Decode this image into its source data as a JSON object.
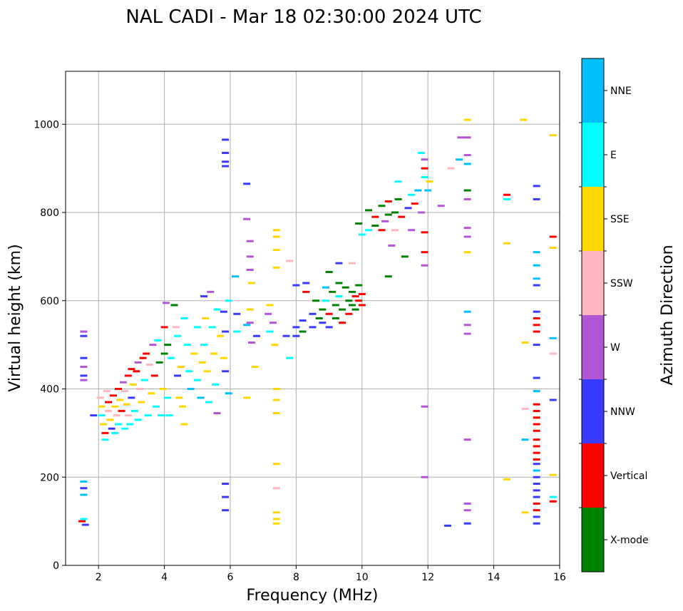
{
  "chart_data": {
    "type": "scatter",
    "title": "NAL CADI - Mar 18 02:30:00 2024 UTC",
    "xlabel": "Frequency (MHz)",
    "ylabel": "Virtual height (km)",
    "xlim": [
      1,
      16
    ],
    "ylim": [
      0,
      1120
    ],
    "xticks": [
      2,
      4,
      6,
      8,
      10,
      12,
      14,
      16
    ],
    "yticks": [
      0,
      200,
      400,
      600,
      800,
      1000
    ],
    "grid": true,
    "colorbar": {
      "label": "Azimuth Direction",
      "categories": [
        {
          "name": "X-mode",
          "color": "#008000"
        },
        {
          "name": "Vertical",
          "color": "#ff0000"
        },
        {
          "name": "NNW",
          "color": "#3a3aff"
        },
        {
          "name": "W",
          "color": "#b455d6"
        },
        {
          "name": "SSW",
          "color": "#ffb6c1"
        },
        {
          "name": "SSE",
          "color": "#ffd700"
        },
        {
          "name": "E",
          "color": "#00ffff"
        },
        {
          "name": "NNE",
          "color": "#00bfff"
        }
      ]
    },
    "points": [
      [
        1.55,
        530,
        "W"
      ],
      [
        1.55,
        520,
        "NNW"
      ],
      [
        1.55,
        470,
        "NNW"
      ],
      [
        1.55,
        450,
        "W"
      ],
      [
        1.55,
        430,
        "NNW"
      ],
      [
        1.55,
        420,
        "W"
      ],
      [
        1.55,
        190,
        "NNE"
      ],
      [
        1.55,
        175,
        "NNW"
      ],
      [
        1.55,
        160,
        "NNE"
      ],
      [
        1.55,
        105,
        "E"
      ],
      [
        1.5,
        100,
        "Vertical"
      ],
      [
        1.6,
        92,
        "NNW"
      ],
      [
        1.85,
        340,
        "NNW"
      ],
      [
        2.05,
        380,
        "SSW"
      ],
      [
        2.1,
        360,
        "SSE"
      ],
      [
        2.1,
        340,
        "E"
      ],
      [
        2.15,
        320,
        "SSE"
      ],
      [
        2.2,
        300,
        "Vertical"
      ],
      [
        2.2,
        285,
        "E"
      ],
      [
        2.25,
        395,
        "SSW"
      ],
      [
        2.3,
        370,
        "Vertical"
      ],
      [
        2.3,
        350,
        "SSW"
      ],
      [
        2.35,
        330,
        "SSE"
      ],
      [
        2.4,
        310,
        "NNW"
      ],
      [
        2.45,
        385,
        "Vertical"
      ],
      [
        2.5,
        360,
        "SSE"
      ],
      [
        2.5,
        300,
        "E"
      ],
      [
        2.55,
        340,
        "SSW"
      ],
      [
        2.6,
        400,
        "Vertical"
      ],
      [
        2.6,
        320,
        "E"
      ],
      [
        2.65,
        375,
        "SSE"
      ],
      [
        2.7,
        350,
        "Vertical"
      ],
      [
        2.75,
        415,
        "W"
      ],
      [
        2.8,
        395,
        "SSW"
      ],
      [
        2.8,
        310,
        "E"
      ],
      [
        2.85,
        365,
        "SSE"
      ],
      [
        2.9,
        430,
        "Vertical"
      ],
      [
        2.9,
        340,
        "SSW"
      ],
      [
        2.95,
        320,
        "E"
      ],
      [
        3.0,
        445,
        "Vertical"
      ],
      [
        3.0,
        380,
        "NNW"
      ],
      [
        3.05,
        410,
        "SSE"
      ],
      [
        3.1,
        350,
        "E"
      ],
      [
        3.15,
        440,
        "Vertical"
      ],
      [
        3.2,
        460,
        "W"
      ],
      [
        3.2,
        330,
        "E"
      ],
      [
        3.25,
        400,
        "SSW"
      ],
      [
        3.3,
        370,
        "SSE"
      ],
      [
        3.35,
        470,
        "Vertical"
      ],
      [
        3.4,
        420,
        "E"
      ],
      [
        3.45,
        480,
        "Vertical"
      ],
      [
        3.5,
        340,
        "E"
      ],
      [
        3.55,
        455,
        "SSW"
      ],
      [
        3.6,
        390,
        "SSE"
      ],
      [
        3.65,
        500,
        "W"
      ],
      [
        3.7,
        430,
        "Vertical"
      ],
      [
        3.75,
        360,
        "E"
      ],
      [
        3.8,
        510,
        "E"
      ],
      [
        3.85,
        460,
        "X-mode"
      ],
      [
        3.9,
        340,
        "E"
      ],
      [
        3.95,
        400,
        "SSE"
      ],
      [
        4.0,
        480,
        "X-mode"
      ],
      [
        4.0,
        540,
        "Vertical"
      ],
      [
        4.05,
        595,
        "W"
      ],
      [
        4.1,
        500,
        "X-mode"
      ],
      [
        4.1,
        380,
        "E"
      ],
      [
        4.15,
        340,
        "E"
      ],
      [
        4.2,
        470,
        "E"
      ],
      [
        4.3,
        590,
        "X-mode"
      ],
      [
        4.35,
        540,
        "SSW"
      ],
      [
        4.4,
        520,
        "E"
      ],
      [
        4.4,
        430,
        "NNW"
      ],
      [
        4.45,
        380,
        "SSE"
      ],
      [
        4.5,
        450,
        "SSE"
      ],
      [
        4.55,
        360,
        "SSE"
      ],
      [
        4.6,
        560,
        "E"
      ],
      [
        4.6,
        320,
        "SSE"
      ],
      [
        4.7,
        500,
        "E"
      ],
      [
        4.75,
        440,
        "E"
      ],
      [
        4.8,
        400,
        "NNE"
      ],
      [
        4.9,
        480,
        "SSE"
      ],
      [
        5.0,
        540,
        "E"
      ],
      [
        5.0,
        420,
        "E"
      ],
      [
        5.1,
        380,
        "NNE"
      ],
      [
        5.15,
        460,
        "SSE"
      ],
      [
        5.2,
        610,
        "NNW"
      ],
      [
        5.2,
        500,
        "E"
      ],
      [
        5.25,
        560,
        "SSE"
      ],
      [
        5.3,
        440,
        "SSE"
      ],
      [
        5.35,
        370,
        "E"
      ],
      [
        5.4,
        620,
        "W"
      ],
      [
        5.45,
        540,
        "E"
      ],
      [
        5.5,
        480,
        "SSE"
      ],
      [
        5.55,
        410,
        "E"
      ],
      [
        5.6,
        580,
        "E"
      ],
      [
        5.6,
        345,
        "W"
      ],
      [
        5.7,
        520,
        "SSE"
      ],
      [
        5.8,
        470,
        "SSE"
      ],
      [
        5.8,
        575,
        "NNW"
      ],
      [
        5.85,
        965,
        "NNW"
      ],
      [
        5.85,
        935,
        "NNW"
      ],
      [
        5.85,
        915,
        "NNW"
      ],
      [
        5.85,
        905,
        "NNW"
      ],
      [
        5.85,
        530,
        "NNW"
      ],
      [
        5.85,
        440,
        "NNW"
      ],
      [
        5.85,
        185,
        "NNW"
      ],
      [
        5.85,
        155,
        "NNW"
      ],
      [
        5.85,
        125,
        "NNW"
      ],
      [
        5.95,
        600,
        "E"
      ],
      [
        5.95,
        390,
        "NNE"
      ],
      [
        6.15,
        655,
        "NNE"
      ],
      [
        6.2,
        570,
        "NNW"
      ],
      [
        6.2,
        530,
        "E"
      ],
      [
        6.5,
        865,
        "NNW"
      ],
      [
        6.5,
        785,
        "W"
      ],
      [
        6.5,
        380,
        "SSE"
      ],
      [
        6.5,
        545,
        "NNE"
      ],
      [
        6.6,
        735,
        "W"
      ],
      [
        6.6,
        700,
        "W"
      ],
      [
        6.6,
        670,
        "W"
      ],
      [
        6.65,
        640,
        "SSE"
      ],
      [
        6.6,
        580,
        "SSE"
      ],
      [
        6.6,
        550,
        "W"
      ],
      [
        6.65,
        505,
        "W"
      ],
      [
        6.75,
        450,
        "SSE"
      ],
      [
        6.8,
        520,
        "NNW"
      ],
      [
        7.2,
        590,
        "SSE"
      ],
      [
        7.15,
        570,
        "W"
      ],
      [
        7.2,
        530,
        "E"
      ],
      [
        7.3,
        550,
        "W"
      ],
      [
        7.35,
        500,
        "SSE"
      ],
      [
        7.4,
        760,
        "SSE"
      ],
      [
        7.4,
        745,
        "SSE"
      ],
      [
        7.4,
        715,
        "SSE"
      ],
      [
        7.4,
        675,
        "SSE"
      ],
      [
        7.4,
        400,
        "SSE"
      ],
      [
        7.4,
        375,
        "SSE"
      ],
      [
        7.4,
        345,
        "SSE"
      ],
      [
        7.4,
        230,
        "SSE"
      ],
      [
        7.4,
        175,
        "SSW"
      ],
      [
        7.4,
        120,
        "SSE"
      ],
      [
        7.4,
        105,
        "SSE"
      ],
      [
        7.4,
        95,
        "SSE"
      ],
      [
        7.7,
        520,
        "NNW"
      ],
      [
        7.8,
        690,
        "SSW"
      ],
      [
        7.8,
        470,
        "E"
      ],
      [
        8.0,
        635,
        "NNW"
      ],
      [
        8.0,
        540,
        "NNW"
      ],
      [
        8.0,
        520,
        "NNW"
      ],
      [
        8.2,
        555,
        "NNW"
      ],
      [
        8.2,
        530,
        "X-mode"
      ],
      [
        8.3,
        640,
        "NNW"
      ],
      [
        8.3,
        620,
        "Vertical"
      ],
      [
        8.5,
        570,
        "NNW"
      ],
      [
        8.5,
        540,
        "NNW"
      ],
      [
        8.6,
        600,
        "X-mode"
      ],
      [
        8.7,
        560,
        "X-mode"
      ],
      [
        8.8,
        580,
        "X-mode"
      ],
      [
        8.8,
        550,
        "NNW"
      ],
      [
        8.9,
        630,
        "NNE"
      ],
      [
        8.9,
        600,
        "E"
      ],
      [
        9.0,
        665,
        "X-mode"
      ],
      [
        9.0,
        570,
        "Vertical"
      ],
      [
        9.0,
        540,
        "NNW"
      ],
      [
        9.1,
        620,
        "X-mode"
      ],
      [
        9.2,
        590,
        "X-mode"
      ],
      [
        9.2,
        560,
        "X-mode"
      ],
      [
        9.3,
        640,
        "X-mode"
      ],
      [
        9.3,
        610,
        "E"
      ],
      [
        9.4,
        580,
        "X-mode"
      ],
      [
        9.4,
        550,
        "Vertical"
      ],
      [
        9.5,
        630,
        "X-mode"
      ],
      [
        9.6,
        600,
        "X-mode"
      ],
      [
        9.6,
        570,
        "Vertical"
      ],
      [
        9.7,
        620,
        "X-mode"
      ],
      [
        9.7,
        590,
        "X-mode"
      ],
      [
        9.8,
        610,
        "Vertical"
      ],
      [
        9.8,
        580,
        "X-mode"
      ],
      [
        9.9,
        635,
        "X-mode"
      ],
      [
        9.9,
        600,
        "Vertical"
      ],
      [
        10.0,
        615,
        "Vertical"
      ],
      [
        10.0,
        590,
        "Vertical"
      ],
      [
        9.7,
        685,
        "SSW"
      ],
      [
        9.3,
        685,
        "NNW"
      ],
      [
        9.9,
        775,
        "X-mode"
      ],
      [
        10.0,
        750,
        "E"
      ],
      [
        10.2,
        805,
        "X-mode"
      ],
      [
        10.2,
        760,
        "E"
      ],
      [
        10.4,
        790,
        "Vertical"
      ],
      [
        10.4,
        770,
        "X-mode"
      ],
      [
        10.6,
        815,
        "X-mode"
      ],
      [
        10.6,
        760,
        "Vertical"
      ],
      [
        10.7,
        780,
        "W"
      ],
      [
        10.8,
        825,
        "Vertical"
      ],
      [
        10.8,
        795,
        "X-mode"
      ],
      [
        10.8,
        655,
        "X-mode"
      ],
      [
        10.9,
        725,
        "W"
      ],
      [
        11.0,
        800,
        "X-mode"
      ],
      [
        11.0,
        760,
        "SSW"
      ],
      [
        11.1,
        870,
        "E"
      ],
      [
        11.1,
        830,
        "X-mode"
      ],
      [
        11.2,
        790,
        "Vertical"
      ],
      [
        11.3,
        700,
        "X-mode"
      ],
      [
        11.4,
        810,
        "NNW"
      ],
      [
        11.5,
        840,
        "E"
      ],
      [
        11.5,
        760,
        "W"
      ],
      [
        11.6,
        820,
        "Vertical"
      ],
      [
        11.7,
        850,
        "NNE"
      ],
      [
        11.8,
        935,
        "E"
      ],
      [
        11.8,
        800,
        "W"
      ],
      [
        11.9,
        920,
        "W"
      ],
      [
        11.9,
        900,
        "Vertical"
      ],
      [
        11.9,
        880,
        "E"
      ],
      [
        11.9,
        755,
        "Vertical"
      ],
      [
        11.9,
        710,
        "Vertical"
      ],
      [
        11.9,
        680,
        "W"
      ],
      [
        11.9,
        360,
        "W"
      ],
      [
        11.9,
        200,
        "W"
      ],
      [
        12.05,
        870,
        "SSE"
      ],
      [
        12.0,
        850,
        "NNE"
      ],
      [
        12.4,
        815,
        "W"
      ],
      [
        12.6,
        90,
        "NNW"
      ],
      [
        12.7,
        900,
        "SSW"
      ],
      [
        12.95,
        920,
        "NNE"
      ],
      [
        13.0,
        970,
        "W"
      ],
      [
        13.2,
        1010,
        "SSE"
      ],
      [
        13.2,
        970,
        "W"
      ],
      [
        13.2,
        930,
        "W"
      ],
      [
        13.2,
        910,
        "NNE"
      ],
      [
        13.2,
        850,
        "X-mode"
      ],
      [
        13.2,
        830,
        "W"
      ],
      [
        13.2,
        765,
        "W"
      ],
      [
        13.2,
        745,
        "W"
      ],
      [
        13.2,
        710,
        "SSE"
      ],
      [
        13.2,
        575,
        "NNE"
      ],
      [
        13.2,
        545,
        "W"
      ],
      [
        13.2,
        525,
        "W"
      ],
      [
        13.2,
        285,
        "W"
      ],
      [
        13.2,
        140,
        "W"
      ],
      [
        13.2,
        125,
        "W"
      ],
      [
        13.2,
        95,
        "NNW"
      ],
      [
        14.4,
        840,
        "Vertical"
      ],
      [
        14.4,
        830,
        "E"
      ],
      [
        14.4,
        730,
        "SSE"
      ],
      [
        14.4,
        195,
        "SSE"
      ],
      [
        14.9,
        1010,
        "SSE"
      ],
      [
        14.95,
        505,
        "SSE"
      ],
      [
        14.95,
        355,
        "SSW"
      ],
      [
        14.95,
        285,
        "NNE"
      ],
      [
        14.95,
        120,
        "SSE"
      ],
      [
        15.3,
        860,
        "NNW"
      ],
      [
        15.3,
        830,
        "NNW"
      ],
      [
        15.3,
        710,
        "NNE"
      ],
      [
        15.3,
        680,
        "NNE"
      ],
      [
        15.3,
        650,
        "NNE"
      ],
      [
        15.3,
        635,
        "NNW"
      ],
      [
        15.3,
        575,
        "NNW"
      ],
      [
        15.3,
        560,
        "Vertical"
      ],
      [
        15.3,
        545,
        "Vertical"
      ],
      [
        15.3,
        530,
        "Vertical"
      ],
      [
        15.3,
        500,
        "NNW"
      ],
      [
        15.3,
        425,
        "NNW"
      ],
      [
        15.3,
        395,
        "NNE"
      ],
      [
        15.3,
        365,
        "Vertical"
      ],
      [
        15.3,
        350,
        "Vertical"
      ],
      [
        15.3,
        335,
        "Vertical"
      ],
      [
        15.3,
        320,
        "Vertical"
      ],
      [
        15.3,
        305,
        "Vertical"
      ],
      [
        15.3,
        285,
        "Vertical"
      ],
      [
        15.3,
        270,
        "Vertical"
      ],
      [
        15.3,
        255,
        "Vertical"
      ],
      [
        15.3,
        240,
        "Vertical"
      ],
      [
        15.3,
        230,
        "NNW"
      ],
      [
        15.3,
        215,
        "NNE"
      ],
      [
        15.3,
        200,
        "NNW"
      ],
      [
        15.3,
        185,
        "NNW"
      ],
      [
        15.3,
        170,
        "NNW"
      ],
      [
        15.3,
        155,
        "NNW"
      ],
      [
        15.3,
        140,
        "Vertical"
      ],
      [
        15.3,
        125,
        "Vertical"
      ],
      [
        15.3,
        110,
        "NNW"
      ],
      [
        15.3,
        95,
        "NNW"
      ],
      [
        15.8,
        975,
        "SSE"
      ],
      [
        15.8,
        745,
        "Vertical"
      ],
      [
        15.8,
        720,
        "SSE"
      ],
      [
        15.8,
        515,
        "NNE"
      ],
      [
        15.8,
        480,
        "SSW"
      ],
      [
        15.8,
        375,
        "NNW"
      ],
      [
        15.8,
        205,
        "SSE"
      ],
      [
        15.8,
        155,
        "E"
      ],
      [
        15.8,
        145,
        "Vertical"
      ]
    ]
  }
}
